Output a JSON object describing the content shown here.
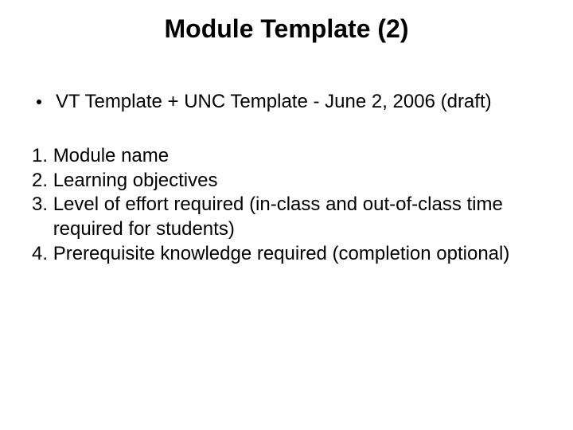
{
  "slide": {
    "title": "Module Template (2)",
    "title_fontsize": 32,
    "body_fontsize": 24,
    "text_color": "#000000",
    "background_color": "#ffffff",
    "bullet": {
      "text": "VT Template + UNC Template - June 2, 2006 (draft)"
    },
    "items": [
      {
        "n": "1. ",
        "text": "Module name"
      },
      {
        "n": "2. ",
        "text": "Learning objectives"
      },
      {
        "n": "3. ",
        "text": "Level of effort required (in-class and out-of-class time required for students)"
      },
      {
        "n": "4. ",
        "text": "Prerequisite knowledge required (completion optional)"
      }
    ]
  }
}
